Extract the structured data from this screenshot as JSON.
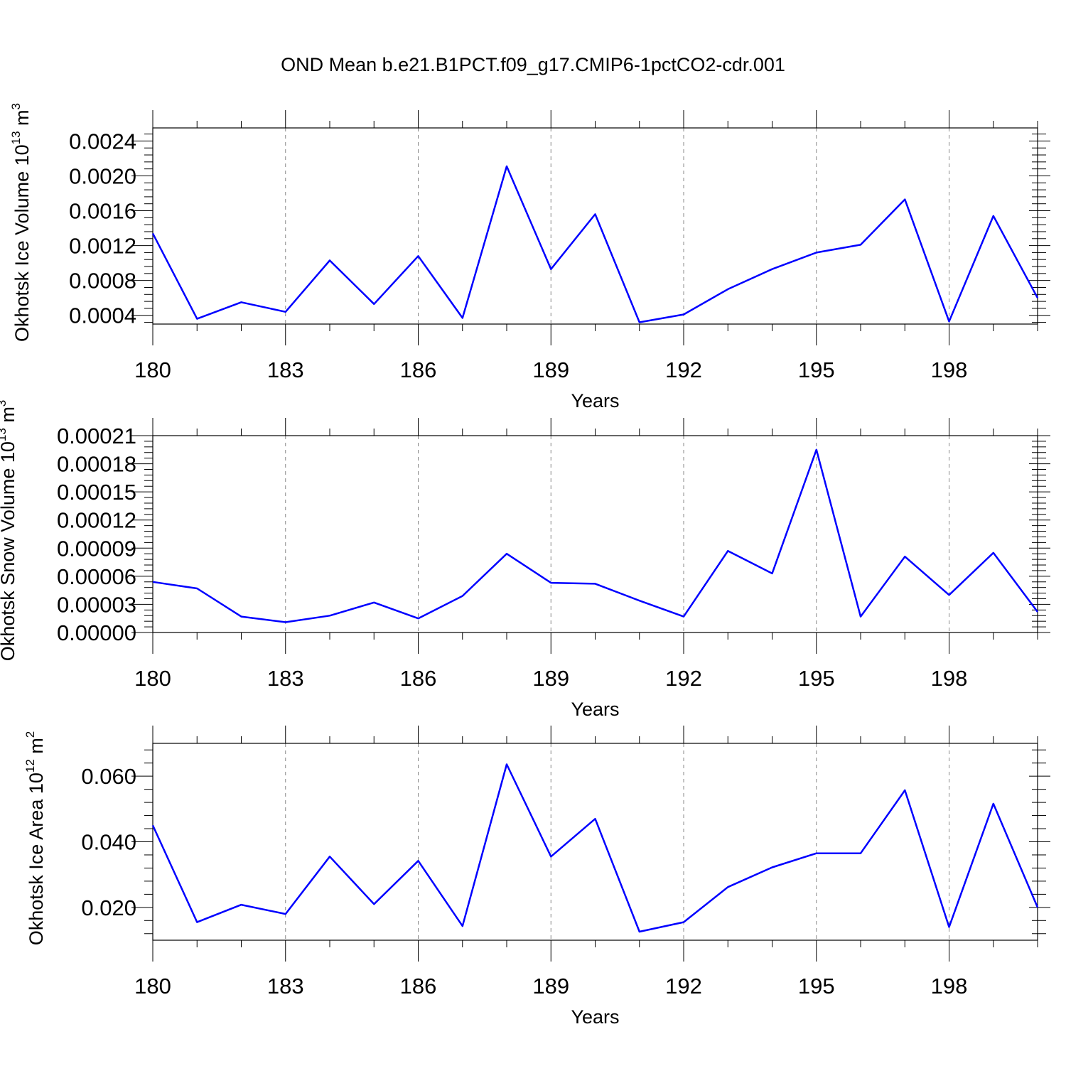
{
  "title": "OND Mean b.e21.B1PCT.f09_g17.CMIP6-1pctCO2-cdr.001",
  "colors": {
    "line": "#0000ff",
    "axis": "#000000",
    "grid": "#888888"
  },
  "chart_data": [
    {
      "type": "line",
      "xlabel": "Years",
      "ylabel_main": "Okhotsk Ice Volume 10",
      "ylabel_sup1": "13",
      "ylabel_unit": " m",
      "ylabel_sup2": "3",
      "xlim": [
        180,
        200
      ],
      "ylim": [
        0.0003,
        0.00255
      ],
      "xticks": [
        180,
        183,
        186,
        189,
        192,
        195,
        198
      ],
      "xtick_labels": [
        "180",
        "183",
        "186",
        "189",
        "192",
        "195",
        "198"
      ],
      "yticks": [
        0.0004,
        0.0008,
        0.0012,
        0.0016,
        0.002,
        0.0024
      ],
      "ytick_labels": [
        "0.0004",
        "0.0008",
        "0.0012",
        "0.0016",
        "0.0020",
        "0.0024"
      ],
      "grid": "x-dashed",
      "x": [
        180,
        181,
        182,
        183,
        184,
        185,
        186,
        187,
        188,
        189,
        190,
        191,
        192,
        193,
        194,
        195,
        196,
        197,
        198,
        199,
        200
      ],
      "series": [
        {
          "values": [
            0.00134,
            0.00036,
            0.00055,
            0.00044,
            0.00103,
            0.00053,
            0.00108,
            0.00037,
            0.00211,
            0.00093,
            0.00156,
            0.00032,
            0.00041,
            0.0007,
            0.00093,
            0.00112,
            0.00121,
            0.00173,
            0.00033,
            0.00154,
            0.0006
          ]
        }
      ]
    },
    {
      "type": "line",
      "xlabel": "Years",
      "ylabel_main": "Okhotsk Snow Volume 10",
      "ylabel_sup1": "13",
      "ylabel_unit": " m",
      "ylabel_sup2": "3",
      "xlim": [
        180,
        200
      ],
      "ylim": [
        0,
        0.00021
      ],
      "xticks": [
        180,
        183,
        186,
        189,
        192,
        195,
        198
      ],
      "xtick_labels": [
        "180",
        "183",
        "186",
        "189",
        "192",
        "195",
        "198"
      ],
      "yticks": [
        0,
        3e-05,
        6e-05,
        9e-05,
        0.00012,
        0.00015,
        0.00018,
        0.00021
      ],
      "ytick_labels": [
        "0.00000",
        "0.00003",
        "0.00006",
        "0.00009",
        "0.00012",
        "0.00015",
        "0.00018",
        "0.00021"
      ],
      "grid": "x-dashed",
      "x": [
        180,
        181,
        182,
        183,
        184,
        185,
        186,
        187,
        188,
        189,
        190,
        191,
        192,
        193,
        194,
        195,
        196,
        197,
        198,
        199,
        200
      ],
      "series": [
        {
          "values": [
            5.4e-05,
            4.7e-05,
            1.7e-05,
            1.1e-05,
            1.8e-05,
            3.2e-05,
            1.5e-05,
            3.9e-05,
            8.4e-05,
            5.3e-05,
            5.2e-05,
            3.4e-05,
            1.7e-05,
            8.7e-05,
            6.3e-05,
            0.000195,
            1.7e-05,
            8.1e-05,
            4e-05,
            8.5e-05,
            2.2e-05
          ]
        }
      ]
    },
    {
      "type": "line",
      "xlabel": "Years",
      "ylabel_main": "Okhotsk Ice Area 10",
      "ylabel_sup1": "12",
      "ylabel_unit": " m",
      "ylabel_sup2": "2",
      "xlim": [
        180,
        200
      ],
      "ylim": [
        0.01,
        0.07
      ],
      "xticks": [
        180,
        183,
        186,
        189,
        192,
        195,
        198
      ],
      "xtick_labels": [
        "180",
        "183",
        "186",
        "189",
        "192",
        "195",
        "198"
      ],
      "yticks": [
        0.02,
        0.04,
        0.06
      ],
      "ytick_labels": [
        "0.020",
        "0.040",
        "0.060"
      ],
      "grid": "x-dashed",
      "x": [
        180,
        181,
        182,
        183,
        184,
        185,
        186,
        187,
        188,
        189,
        190,
        191,
        192,
        193,
        194,
        195,
        196,
        197,
        198,
        199,
        200
      ],
      "series": [
        {
          "values": [
            0.045,
            0.0155,
            0.0208,
            0.018,
            0.0355,
            0.021,
            0.0342,
            0.0143,
            0.0636,
            0.0355,
            0.047,
            0.0126,
            0.0155,
            0.0262,
            0.0322,
            0.0365,
            0.0365,
            0.0557,
            0.014,
            0.0516,
            0.02
          ]
        }
      ]
    }
  ]
}
